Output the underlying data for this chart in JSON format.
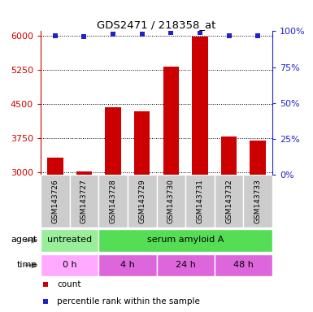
{
  "title": "GDS2471 / 218358_at",
  "samples": [
    "GSM143726",
    "GSM143727",
    "GSM143728",
    "GSM143729",
    "GSM143730",
    "GSM143731",
    "GSM143732",
    "GSM143733"
  ],
  "counts": [
    3320,
    3030,
    4430,
    4350,
    5330,
    5980,
    3780,
    3700
  ],
  "percentile_ranks": [
    97,
    96,
    98,
    98,
    99,
    99,
    97,
    97
  ],
  "ylim_left": [
    2950,
    6100
  ],
  "ylim_right": [
    0,
    100
  ],
  "yticks_left": [
    3000,
    3750,
    4500,
    5250,
    6000
  ],
  "yticks_right": [
    0,
    25,
    50,
    75,
    100
  ],
  "bar_color": "#cc0000",
  "dot_color": "#2222cc",
  "agent_groups": [
    {
      "label": "untreated",
      "start": 0,
      "end": 2,
      "color": "#99ee99"
    },
    {
      "label": "serum amyloid A",
      "start": 2,
      "end": 8,
      "color": "#55dd55"
    }
  ],
  "time_groups": [
    {
      "label": "0 h",
      "start": 0,
      "end": 2,
      "color": "#ffaaff"
    },
    {
      "label": "4 h",
      "start": 2,
      "end": 4,
      "color": "#dd66dd"
    },
    {
      "label": "24 h",
      "start": 4,
      "end": 6,
      "color": "#dd66dd"
    },
    {
      "label": "48 h",
      "start": 6,
      "end": 8,
      "color": "#dd66dd"
    }
  ],
  "legend_items": [
    {
      "color": "#cc0000",
      "label": "count"
    },
    {
      "color": "#2222cc",
      "label": "percentile rank within the sample"
    }
  ],
  "background_color": "#ffffff",
  "tick_label_color_left": "#cc0000",
  "tick_label_color_right": "#2222cc",
  "sample_box_color": "#cccccc"
}
